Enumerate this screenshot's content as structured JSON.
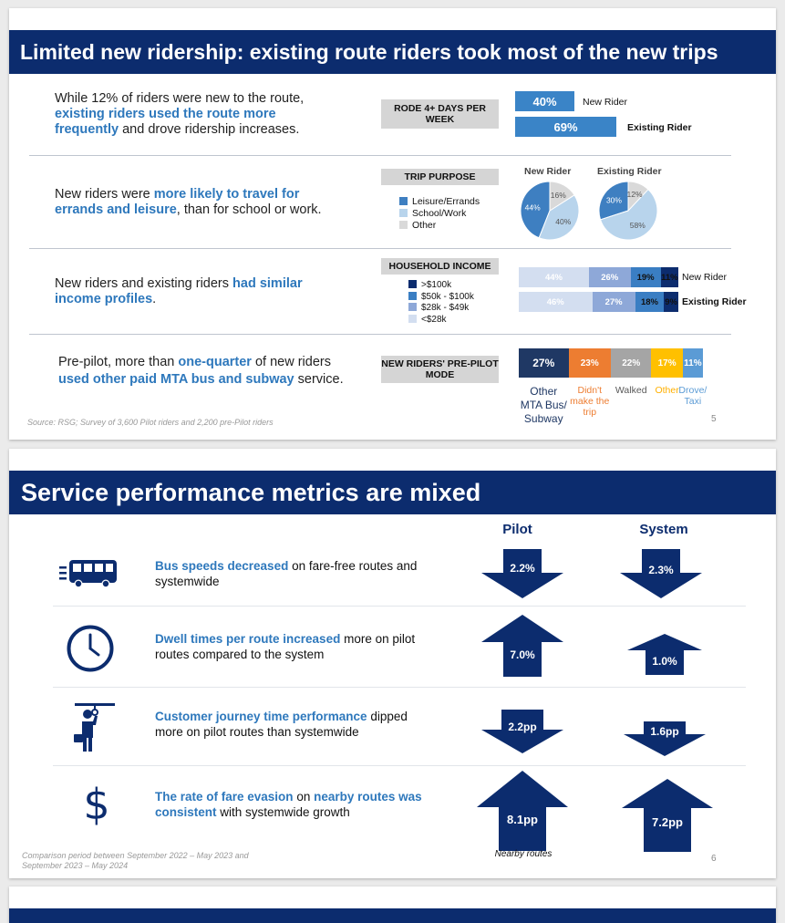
{
  "slide1": {
    "title": "Limited new ridership: existing route riders took most of the new trips",
    "rows": [
      {
        "parts": [
          "While 12% of riders were new to the route, ",
          "existing riders used the route more frequently",
          " and drove ridership increases."
        ],
        "box": "RODE 4+ DAYS PER WEEK"
      },
      {
        "parts": [
          "New riders were ",
          "more likely to travel for errands and leisure",
          ", than for school or work."
        ],
        "box": "TRIP PURPOSE"
      },
      {
        "parts": [
          "New riders and existing riders ",
          "had similar income profiles",
          "."
        ],
        "box": "HOUSEHOLD INCOME"
      },
      {
        "parts": [
          "Pre-pilot, more than ",
          "one-quarter",
          " of new riders ",
          "used other paid MTA bus and subway",
          " service."
        ],
        "box": "NEW RIDERS' PRE-PILOT MODE"
      }
    ],
    "days": {
      "bars": [
        {
          "label": "New Rider",
          "pct": "40%",
          "value": 40,
          "color": "#3a84c7"
        },
        {
          "label": "Existing Rider",
          "pct": "69%",
          "value": 69,
          "color": "#3a84c7"
        }
      ]
    },
    "purpose": {
      "legend": [
        {
          "label": "Leisure/Errands",
          "color": "#3e7fc1"
        },
        {
          "label": "School/Work",
          "color": "#b8d4ec"
        },
        {
          "label": "Other",
          "color": "#d9d9d9"
        }
      ],
      "pies": [
        {
          "title": "New Rider",
          "values": [
            44,
            40,
            16
          ],
          "labels": [
            "44%",
            "40%",
            "16%"
          ]
        },
        {
          "title": "Existing Rider",
          "values": [
            30,
            58,
            12
          ],
          "labels": [
            "30%",
            "58%",
            "12%"
          ]
        }
      ]
    },
    "income": {
      "legend": [
        {
          "label": ">$100k",
          "color": "#0c2c6e"
        },
        {
          "label": "$50k - $100k",
          "color": "#3a7ec3"
        },
        {
          "label": "$28k - $49k",
          "color": "#8ea8d8"
        },
        {
          "label": "<$28k",
          "color": "#d3def0"
        }
      ],
      "rows": [
        {
          "label": "New Rider",
          "values": [
            44,
            26,
            19,
            11
          ],
          "labels": [
            "44%",
            "26%",
            "19%",
            "11%"
          ]
        },
        {
          "label": "Existing Rider",
          "values": [
            46,
            27,
            18,
            9
          ],
          "labels": [
            "46%",
            "27%",
            "18%",
            "9%"
          ]
        }
      ]
    },
    "mode": {
      "segments": [
        {
          "pct": "27%",
          "value": 27,
          "color": "#1f3864",
          "label": "Other MTA Bus/ Subway",
          "label_color": "#1f3864"
        },
        {
          "pct": "23%",
          "value": 23,
          "color": "#ed7d31",
          "label": "Didn't make the trip",
          "label_color": "#ed7d31"
        },
        {
          "pct": "22%",
          "value": 22,
          "color": "#a5a5a5",
          "label": "Walked",
          "label_color": "#595959"
        },
        {
          "pct": "17%",
          "value": 17,
          "color": "#ffc000",
          "label": "Other",
          "label_color": "#ffb000"
        },
        {
          "pct": "11%",
          "value": 11,
          "color": "#5b9bd5",
          "label": "Drove/ Taxi",
          "label_color": "#5b9bd5"
        }
      ]
    },
    "source": "Source: RSG; Survey of 3,600 Pilot riders and 2,200 pre-Pilot riders",
    "page": "5"
  },
  "slide2": {
    "title": "Service performance metrics are mixed",
    "col_pilot": "Pilot",
    "col_system": "System",
    "metrics": [
      {
        "icon": "bus-icon",
        "hl": "Bus speeds decreased",
        "rest": " on fare-free routes and systemwide",
        "hl2": "",
        "rest2": "",
        "pilot": {
          "dir": "down",
          "val": "2.2%"
        },
        "system": {
          "dir": "down",
          "val": "2.3%"
        }
      },
      {
        "icon": "clock-icon",
        "hl": "Dwell times per route increased",
        "rest": " more on pilot routes compared to the system",
        "hl2": "",
        "rest2": "",
        "pilot": {
          "dir": "up",
          "val": "7.0%"
        },
        "system": {
          "dir": "up",
          "val": "1.0%"
        }
      },
      {
        "icon": "commuter-icon",
        "hl": "Customer journey time performance",
        "rest": " dipped more on pilot routes than systemwide",
        "hl2": "",
        "rest2": "",
        "pilot": {
          "dir": "down",
          "val": "2.2pp"
        },
        "system": {
          "dir": "down",
          "val": "1.6pp"
        }
      },
      {
        "icon": "dollar-icon",
        "hl": "The rate of fare evasion",
        "rest": " on ",
        "hl2": "nearby routes was consistent",
        "rest2": " with systemwide growth",
        "pilot": {
          "dir": "up",
          "val": "8.1pp"
        },
        "system": {
          "dir": "up",
          "val": "7.2pp"
        }
      }
    ],
    "nearby_note": "Nearby routes",
    "footnote": "Comparison period between September 2022 – May 2023 and September 2023 – May 2024",
    "page": "6"
  }
}
